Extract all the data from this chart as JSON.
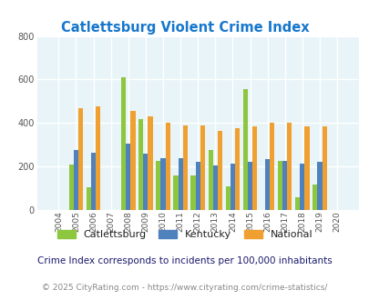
{
  "title": "Catlettsburg Violent Crime Index",
  "years": [
    2004,
    2005,
    2006,
    2007,
    2008,
    2009,
    2010,
    2011,
    2012,
    2013,
    2014,
    2015,
    2016,
    2017,
    2018,
    2019,
    2020
  ],
  "catlettsburg": [
    0,
    210,
    105,
    0,
    610,
    420,
    225,
    160,
    160,
    275,
    110,
    555,
    0,
    225,
    60,
    115,
    0
  ],
  "kentucky": [
    0,
    275,
    265,
    0,
    305,
    260,
    240,
    240,
    220,
    205,
    215,
    220,
    235,
    225,
    215,
    220,
    0
  ],
  "national": [
    0,
    470,
    475,
    0,
    455,
    430,
    400,
    390,
    390,
    365,
    375,
    385,
    400,
    400,
    385,
    385,
    0
  ],
  "bar_colors": {
    "catlettsburg": "#8dc63f",
    "kentucky": "#4f81bd",
    "national": "#f0a030"
  },
  "ylim": [
    0,
    800
  ],
  "yticks": [
    0,
    200,
    400,
    600,
    800
  ],
  "legend_labels": [
    "Catlettsburg",
    "Kentucky",
    "National"
  ],
  "footnote1": "Crime Index corresponds to incidents per 100,000 inhabitants",
  "footnote2": "© 2025 CityRating.com - https://www.cityrating.com/crime-statistics/",
  "title_color": "#1777cc",
  "footnote1_color": "#1a1a6e",
  "footnote2_color": "#888888",
  "url_color": "#3399cc",
  "background_color": "#e8f4f8",
  "grid_color": "#ffffff",
  "bar_width": 0.27
}
